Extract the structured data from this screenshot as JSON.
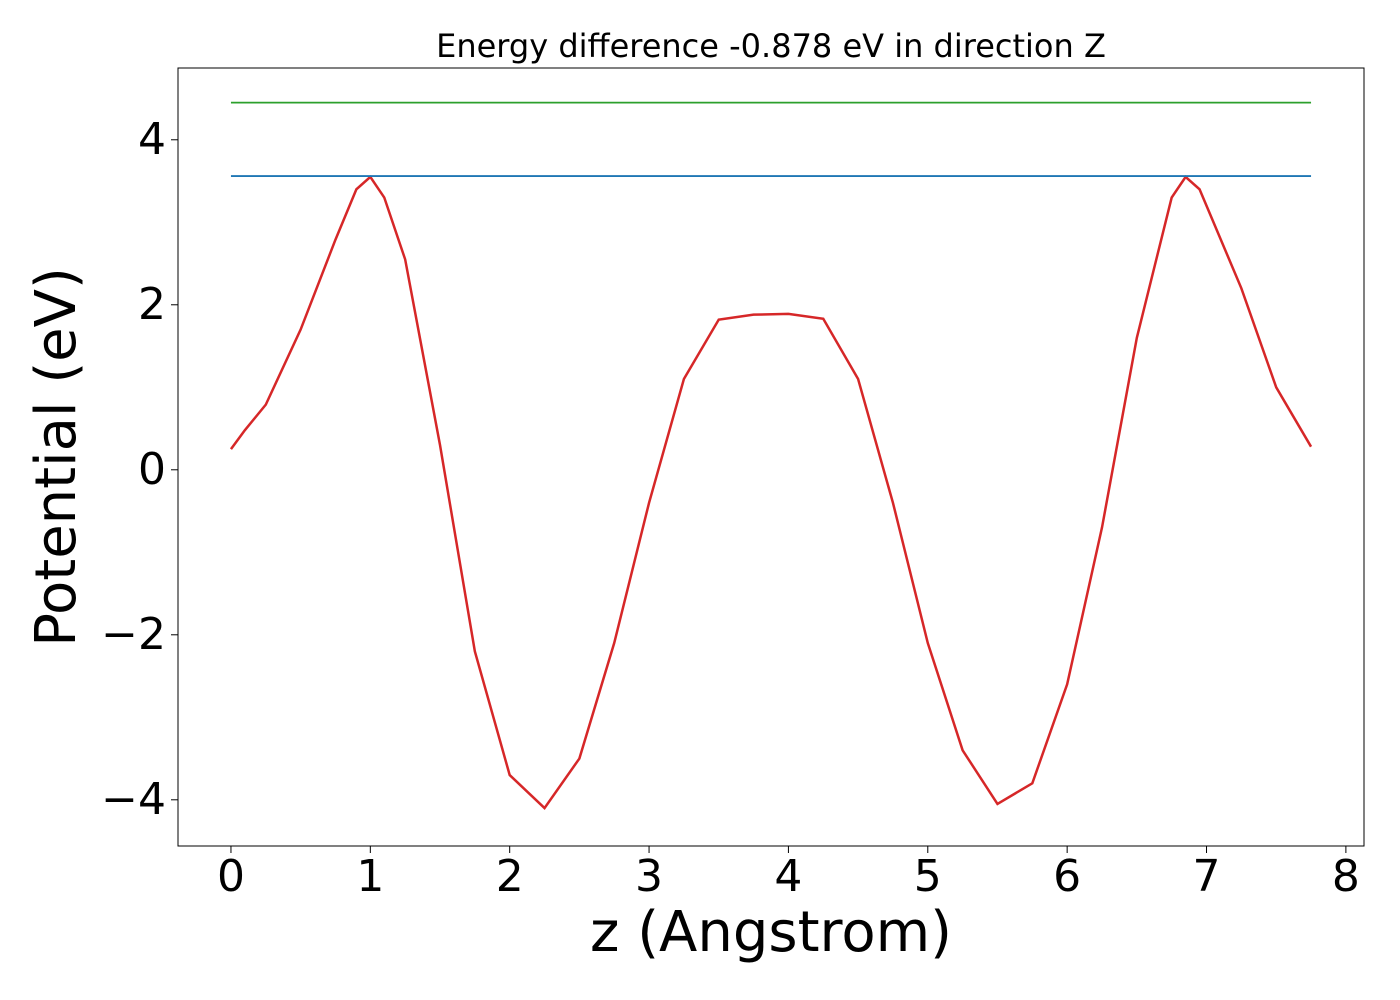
{
  "chart_data": {
    "type": "line",
    "title": "Energy difference -0.878 eV in direction Z",
    "x_label": "z (Angstrom)",
    "y_label": "Potential (eV)",
    "xlim": [
      -0.38,
      8.13
    ],
    "ylim": [
      -4.56,
      4.87
    ],
    "xticks": [
      0,
      1,
      2,
      3,
      4,
      5,
      6,
      7,
      8
    ],
    "yticks": [
      {
        "value": -4,
        "label": "−4"
      },
      {
        "value": -2,
        "label": "−2"
      },
      0,
      2,
      4
    ],
    "series": [
      {
        "color": "#d62728",
        "x": [
          0,
          0.1,
          0.25,
          0.5,
          0.75,
          0.9,
          1.0,
          1.1,
          1.25,
          1.5,
          1.75,
          2.0,
          2.25,
          2.5,
          2.75,
          3.0,
          3.25,
          3.5,
          3.75,
          4.0,
          4.25,
          4.5,
          4.75,
          5.0,
          5.25,
          5.5,
          5.75,
          6.0,
          6.25,
          6.5,
          6.75,
          6.85,
          6.95,
          7.0,
          7.25,
          7.5,
          7.75
        ],
        "values": [
          0.25,
          0.48,
          0.79,
          1.7,
          2.79,
          3.4,
          3.55,
          3.3,
          2.55,
          0.3,
          -2.2,
          -3.7,
          -4.1,
          -3.5,
          -2.1,
          -0.4,
          1.1,
          1.82,
          1.88,
          1.89,
          1.83,
          1.1,
          -0.4,
          -2.1,
          -3.4,
          -4.05,
          -3.8,
          -2.6,
          -0.7,
          1.6,
          3.3,
          3.55,
          3.4,
          3.2,
          2.2,
          1.0,
          0.28
        ]
      },
      {
        "color": "#2ca02c",
        "x": [
          0,
          7.75
        ],
        "values": [
          4.45,
          4.45
        ]
      },
      {
        "color": "#1f77b4",
        "x": [
          0,
          7.75
        ],
        "values": [
          3.56,
          3.56
        ]
      }
    ]
  }
}
